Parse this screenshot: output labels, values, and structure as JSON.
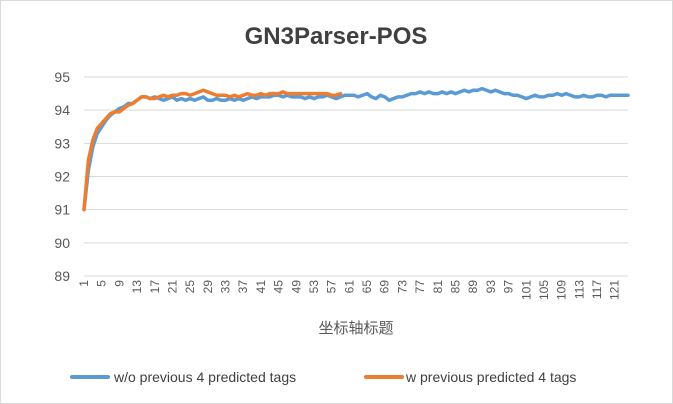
{
  "chart_data": {
    "type": "line",
    "title": "GN3Parser-POS",
    "xlabel": "坐标轴标题",
    "ylabel": "",
    "ylim": [
      89,
      95
    ],
    "yticks": [
      89,
      90,
      91,
      92,
      93,
      94,
      95
    ],
    "xlim": [
      1,
      124
    ],
    "xticks": [
      1,
      5,
      9,
      13,
      17,
      21,
      25,
      29,
      33,
      37,
      41,
      45,
      49,
      53,
      57,
      61,
      65,
      69,
      73,
      77,
      81,
      85,
      89,
      93,
      97,
      101,
      105,
      109,
      113,
      117,
      121
    ],
    "grid": "horizontal",
    "legend_position": "bottom",
    "colors": {
      "series1": "#5b9bd5",
      "series2": "#ed7d31",
      "grid": "#d9d9d9",
      "text": "#595959"
    },
    "series": [
      {
        "name": "w/o previous 4 predicted tags",
        "color": "#5b9bd5",
        "x": [
          1,
          2,
          3,
          4,
          5,
          6,
          7,
          8,
          9,
          10,
          11,
          12,
          13,
          14,
          15,
          16,
          17,
          18,
          19,
          20,
          21,
          22,
          23,
          24,
          25,
          26,
          27,
          28,
          29,
          30,
          31,
          32,
          33,
          34,
          35,
          36,
          37,
          38,
          39,
          40,
          41,
          42,
          43,
          44,
          45,
          46,
          47,
          48,
          49,
          50,
          51,
          52,
          53,
          54,
          55,
          56,
          57,
          58,
          59,
          60,
          61,
          62,
          63,
          64,
          65,
          66,
          67,
          68,
          69,
          70,
          71,
          72,
          73,
          74,
          75,
          76,
          77,
          78,
          79,
          80,
          81,
          82,
          83,
          84,
          85,
          86,
          87,
          88,
          89,
          90,
          91,
          92,
          93,
          94,
          95,
          96,
          97,
          98,
          99,
          100,
          101,
          102,
          103,
          104,
          105,
          106,
          107,
          108,
          109,
          110,
          111,
          112,
          113,
          114,
          115,
          116,
          117,
          118,
          119,
          120,
          121,
          122,
          123,
          124
        ],
        "values": [
          91.0,
          92.2,
          92.9,
          93.3,
          93.5,
          93.7,
          93.85,
          93.95,
          94.05,
          94.1,
          94.2,
          94.2,
          94.3,
          94.4,
          94.4,
          94.35,
          94.4,
          94.35,
          94.3,
          94.35,
          94.4,
          94.3,
          94.35,
          94.3,
          94.35,
          94.3,
          94.35,
          94.4,
          94.3,
          94.3,
          94.35,
          94.3,
          94.3,
          94.35,
          94.3,
          94.35,
          94.3,
          94.35,
          94.4,
          94.35,
          94.4,
          94.4,
          94.4,
          94.45,
          94.45,
          94.4,
          94.45,
          94.4,
          94.4,
          94.4,
          94.35,
          94.4,
          94.35,
          94.4,
          94.4,
          94.45,
          94.4,
          94.35,
          94.4,
          94.45,
          94.45,
          94.45,
          94.4,
          94.45,
          94.5,
          94.4,
          94.35,
          94.45,
          94.4,
          94.3,
          94.35,
          94.4,
          94.4,
          94.45,
          94.5,
          94.5,
          94.55,
          94.5,
          94.55,
          94.5,
          94.5,
          94.55,
          94.5,
          94.55,
          94.5,
          94.55,
          94.6,
          94.55,
          94.6,
          94.6,
          94.65,
          94.6,
          94.55,
          94.6,
          94.55,
          94.5,
          94.5,
          94.45,
          94.45,
          94.4,
          94.35,
          94.4,
          94.45,
          94.4,
          94.4,
          94.45,
          94.45,
          94.5,
          94.45,
          94.5,
          94.45,
          94.4,
          94.4,
          94.45,
          94.4,
          94.4,
          94.45,
          94.45,
          94.4,
          94.45,
          94.45,
          94.45,
          94.45,
          94.45
        ]
      },
      {
        "name": "w previous predicted 4 tags",
        "color": "#ed7d31",
        "x": [
          1,
          2,
          3,
          4,
          5,
          6,
          7,
          8,
          9,
          10,
          11,
          12,
          13,
          14,
          15,
          16,
          17,
          18,
          19,
          20,
          21,
          22,
          23,
          24,
          25,
          26,
          27,
          28,
          29,
          30,
          31,
          32,
          33,
          34,
          35,
          36,
          37,
          38,
          39,
          40,
          41,
          42,
          43,
          44,
          45,
          46,
          47,
          48,
          49,
          50,
          51,
          52,
          53,
          54,
          55,
          56,
          57,
          58,
          59
        ],
        "values": [
          91.0,
          92.5,
          93.1,
          93.45,
          93.6,
          93.75,
          93.9,
          93.95,
          93.95,
          94.05,
          94.15,
          94.2,
          94.3,
          94.4,
          94.4,
          94.35,
          94.35,
          94.4,
          94.45,
          94.4,
          94.45,
          94.45,
          94.5,
          94.5,
          94.45,
          94.5,
          94.55,
          94.6,
          94.55,
          94.5,
          94.45,
          94.45,
          94.45,
          94.4,
          94.45,
          94.4,
          94.45,
          94.5,
          94.45,
          94.45,
          94.5,
          94.45,
          94.5,
          94.5,
          94.5,
          94.55,
          94.5,
          94.5,
          94.5,
          94.5,
          94.5,
          94.5,
          94.5,
          94.5,
          94.5,
          94.5,
          94.45,
          94.45,
          94.5
        ]
      }
    ]
  }
}
